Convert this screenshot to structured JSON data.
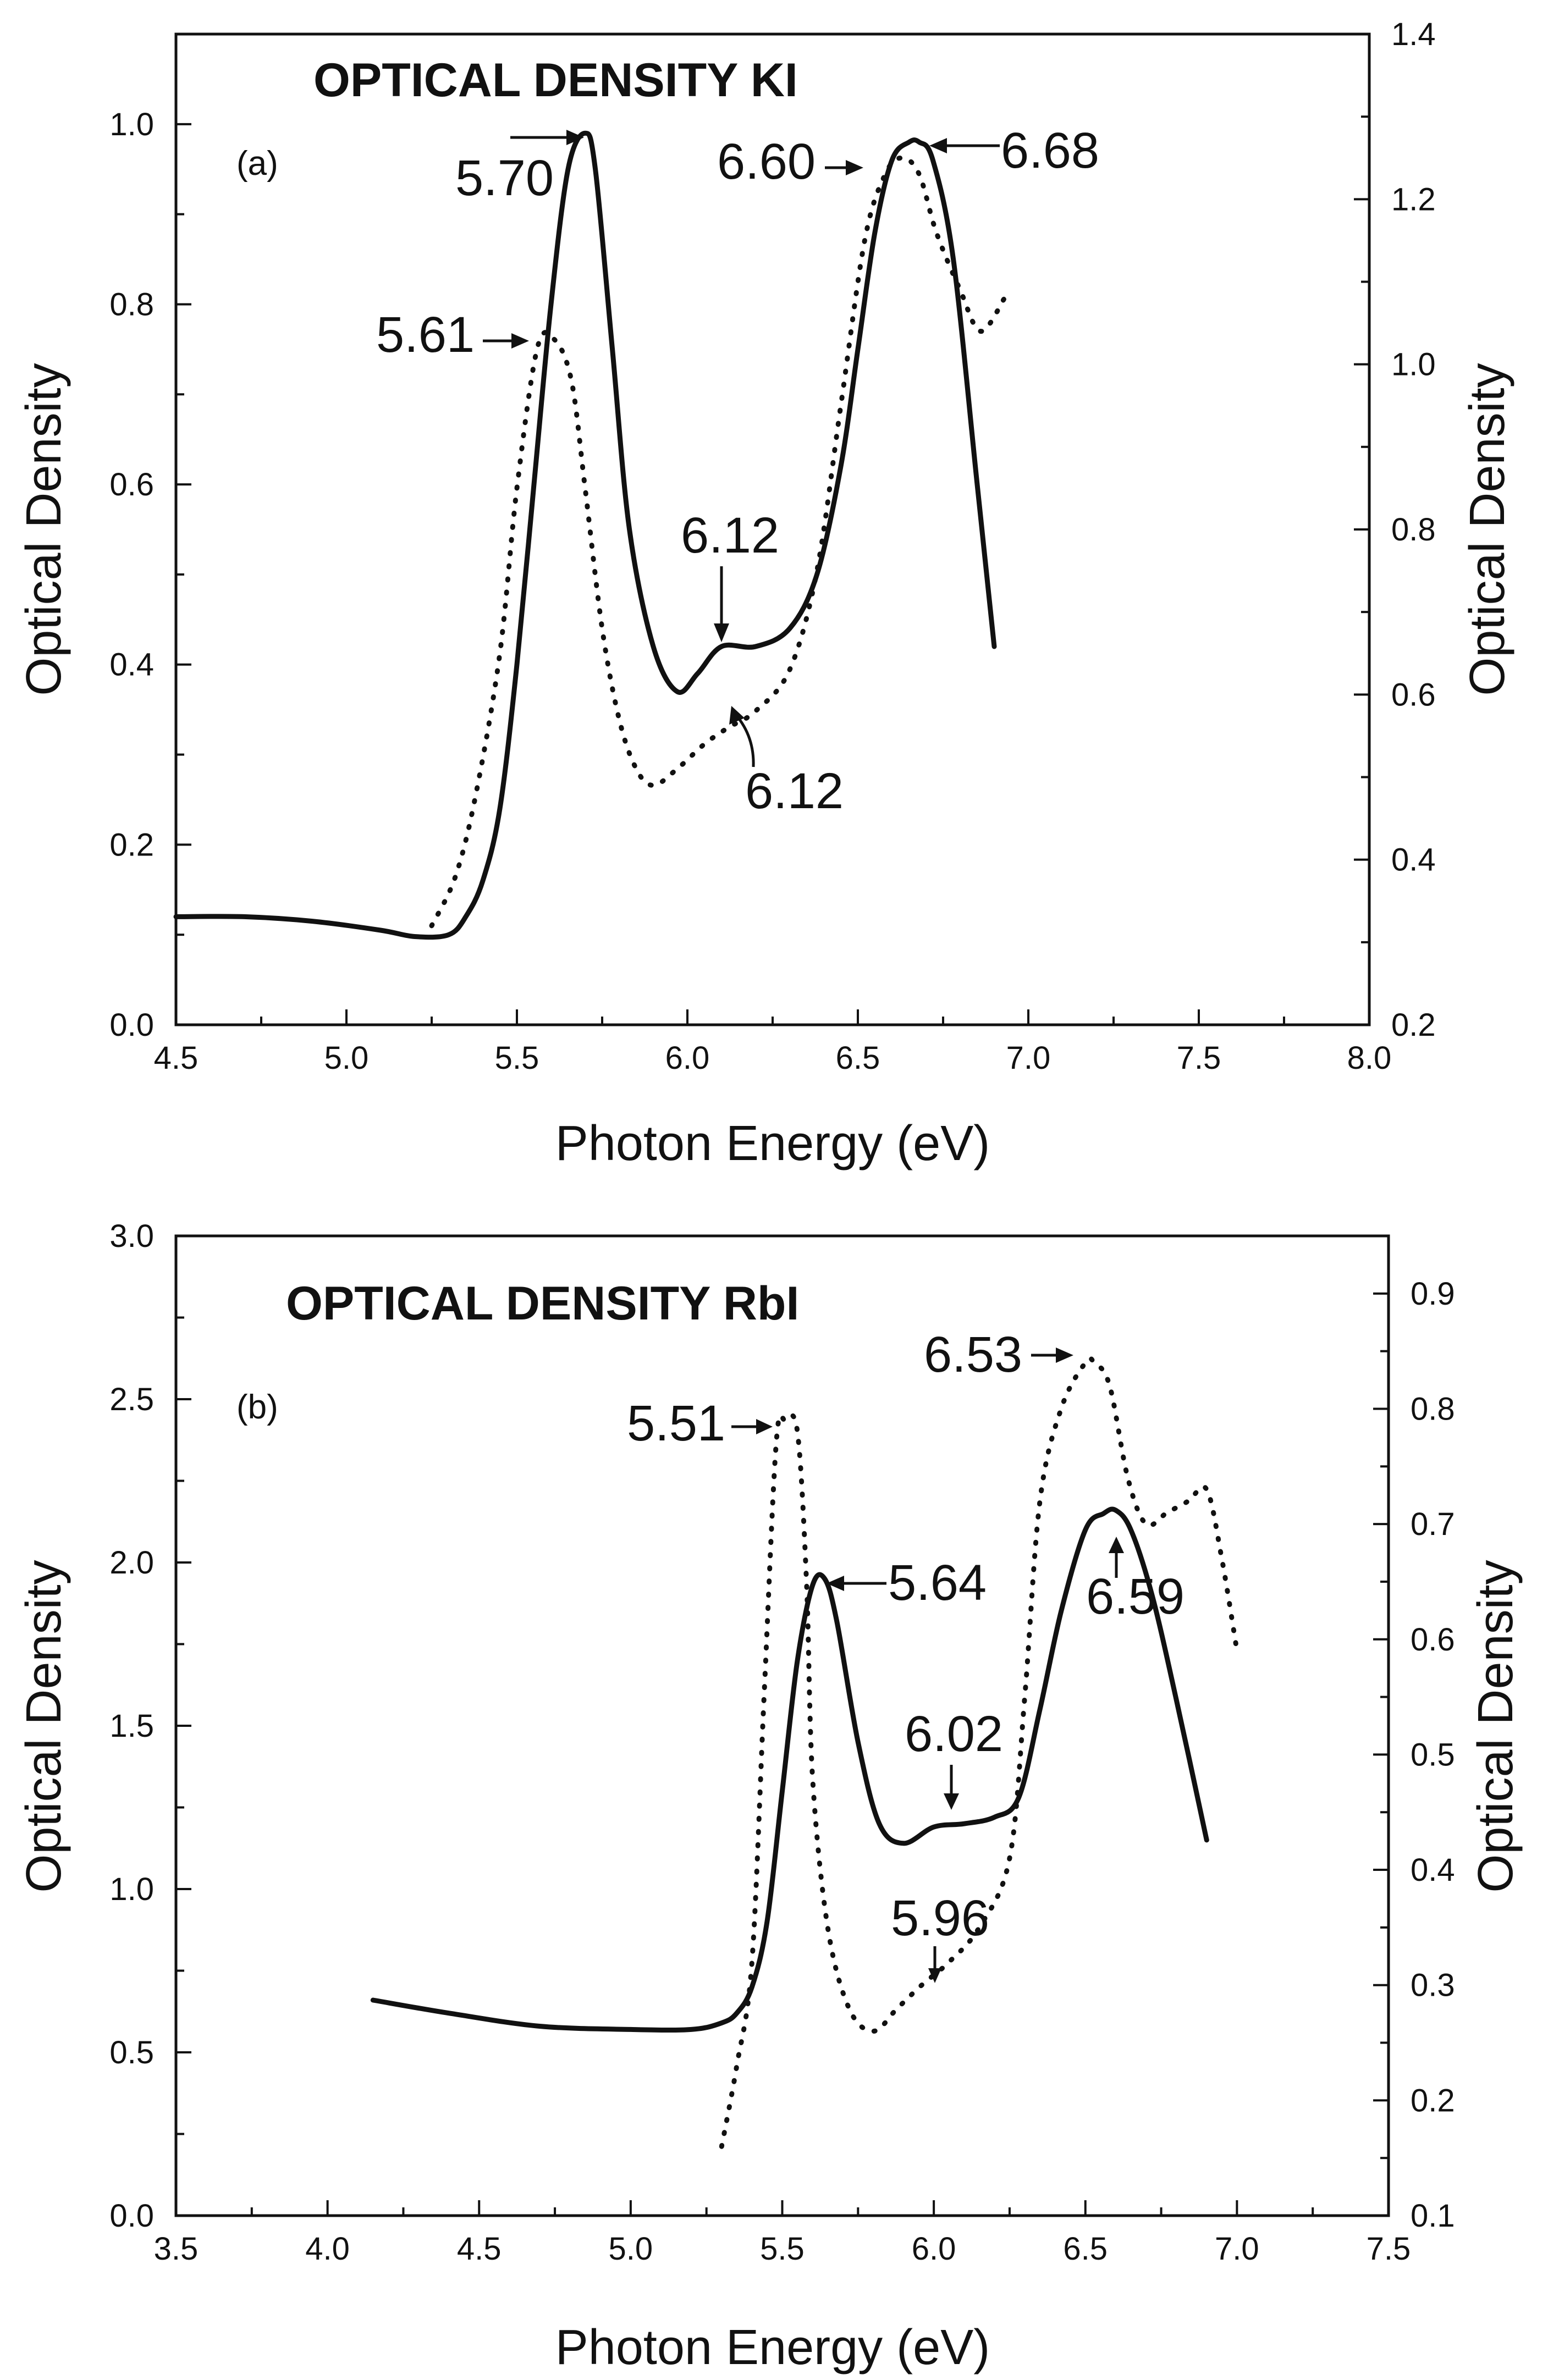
{
  "chart_data": [
    {
      "type": "line",
      "id": "panel-a",
      "title": "OPTICAL DENSITY KI",
      "panel_label": "(a)",
      "xlabel": "Photon Energy (eV)",
      "ylabel": "Optical Density",
      "y2label": "Optical Density",
      "xlim": [
        4.5,
        8.0
      ],
      "ylim": [
        0.0,
        1.1
      ],
      "y2lim": [
        0.2,
        1.4
      ],
      "xticks": [
        "4.5",
        "5.0",
        "5.5",
        "6.0",
        "6.5",
        "7.0",
        "7.5",
        "8.0"
      ],
      "yticks": [
        "0.0",
        "0.2",
        "0.4",
        "0.6",
        "0.8",
        "1.0"
      ],
      "y2ticks": [
        "0.2",
        "0.4",
        "0.6",
        "0.8",
        "1.0",
        "1.2",
        "1.4"
      ],
      "series": [
        {
          "name": "solid",
          "style": "solid",
          "axis": "left",
          "x": [
            4.5,
            4.7,
            4.9,
            5.1,
            5.2,
            5.3,
            5.35,
            5.4,
            5.45,
            5.5,
            5.55,
            5.6,
            5.65,
            5.7,
            5.73,
            5.78,
            5.83,
            5.9,
            5.97,
            6.03,
            6.1,
            6.2,
            6.3,
            6.38,
            6.45,
            6.5,
            6.55,
            6.6,
            6.65,
            6.68,
            6.72,
            6.78,
            6.85,
            6.9
          ],
          "y": [
            0.12,
            0.12,
            0.115,
            0.105,
            0.098,
            0.1,
            0.12,
            0.16,
            0.24,
            0.4,
            0.6,
            0.8,
            0.95,
            0.99,
            0.95,
            0.75,
            0.55,
            0.42,
            0.37,
            0.39,
            0.42,
            0.42,
            0.44,
            0.5,
            0.62,
            0.75,
            0.88,
            0.96,
            0.98,
            0.98,
            0.96,
            0.85,
            0.6,
            0.42
          ]
        },
        {
          "name": "dotted",
          "style": "dotted",
          "axis": "right",
          "x": [
            5.25,
            5.32,
            5.38,
            5.45,
            5.5,
            5.56,
            5.61,
            5.66,
            5.7,
            5.75,
            5.8,
            5.85,
            5.9,
            5.97,
            6.05,
            6.12,
            6.2,
            6.3,
            6.38,
            6.45,
            6.52,
            6.58,
            6.63,
            6.68,
            6.73,
            6.8,
            6.86,
            6.93
          ],
          "y": [
            0.32,
            0.38,
            0.48,
            0.65,
            0.85,
            1.02,
            1.03,
            0.98,
            0.85,
            0.68,
            0.57,
            0.51,
            0.49,
            0.51,
            0.54,
            0.56,
            0.58,
            0.63,
            0.75,
            0.95,
            1.15,
            1.23,
            1.25,
            1.23,
            1.16,
            1.09,
            1.04,
            1.08
          ]
        }
      ],
      "annotations": [
        "5.70",
        "5.61",
        "6.60",
        "6.68",
        "6.12",
        "6.12"
      ]
    },
    {
      "type": "line",
      "id": "panel-b",
      "title": "OPTICAL DENSITY RbI",
      "panel_label": "(b)",
      "xlabel": "Photon Energy (eV)",
      "ylabel": "Optical Density",
      "y2label": "Optical Density",
      "xlim": [
        3.5,
        7.5
      ],
      "ylim": [
        0.0,
        3.0
      ],
      "y2lim": [
        0.1,
        0.95
      ],
      "xticks": [
        "3.5",
        "4.0",
        "4.5",
        "5.0",
        "5.5",
        "6.0",
        "6.5",
        "7.0",
        "7.5"
      ],
      "yticks": [
        "0.0",
        "0.5",
        "1.0",
        "1.5",
        "2.0",
        "2.5",
        "3.0"
      ],
      "y2ticks": [
        "0.1",
        "0.2",
        "0.3",
        "0.4",
        "0.5",
        "0.6",
        "0.7",
        "0.8",
        "0.9"
      ],
      "series": [
        {
          "name": "solid",
          "style": "solid",
          "axis": "left",
          "x": [
            4.15,
            4.4,
            4.7,
            5.0,
            5.2,
            5.3,
            5.35,
            5.4,
            5.45,
            5.5,
            5.55,
            5.6,
            5.64,
            5.68,
            5.75,
            5.82,
            5.9,
            6.0,
            6.1,
            6.2,
            6.28,
            6.35,
            6.42,
            6.5,
            6.56,
            6.6,
            6.65,
            6.72,
            6.8,
            6.9
          ],
          "y": [
            0.66,
            0.62,
            0.58,
            0.57,
            0.57,
            0.59,
            0.62,
            0.7,
            0.9,
            1.3,
            1.7,
            1.93,
            1.95,
            1.82,
            1.45,
            1.2,
            1.14,
            1.19,
            1.2,
            1.22,
            1.28,
            1.55,
            1.85,
            2.1,
            2.15,
            2.16,
            2.1,
            1.9,
            1.58,
            1.15
          ]
        },
        {
          "name": "dotted",
          "style": "dotted",
          "axis": "right",
          "x": [
            5.3,
            5.35,
            5.4,
            5.44,
            5.48,
            5.51,
            5.55,
            5.58,
            5.6,
            5.65,
            5.72,
            5.8,
            5.88,
            5.96,
            6.05,
            6.15,
            6.25,
            6.3,
            6.35,
            6.42,
            6.5,
            6.53,
            6.58,
            6.64,
            6.7,
            6.77,
            6.84,
            6.9,
            6.95,
            7.0
          ],
          "y": [
            0.16,
            0.23,
            0.32,
            0.55,
            0.77,
            0.79,
            0.78,
            0.65,
            0.48,
            0.35,
            0.28,
            0.26,
            0.28,
            0.3,
            0.32,
            0.35,
            0.41,
            0.55,
            0.72,
            0.8,
            0.84,
            0.84,
            0.82,
            0.74,
            0.7,
            0.71,
            0.72,
            0.73,
            0.67,
            0.59
          ]
        }
      ],
      "annotations": [
        "5.51",
        "5.64",
        "6.53",
        "6.59",
        "6.02",
        "5.96"
      ]
    }
  ]
}
